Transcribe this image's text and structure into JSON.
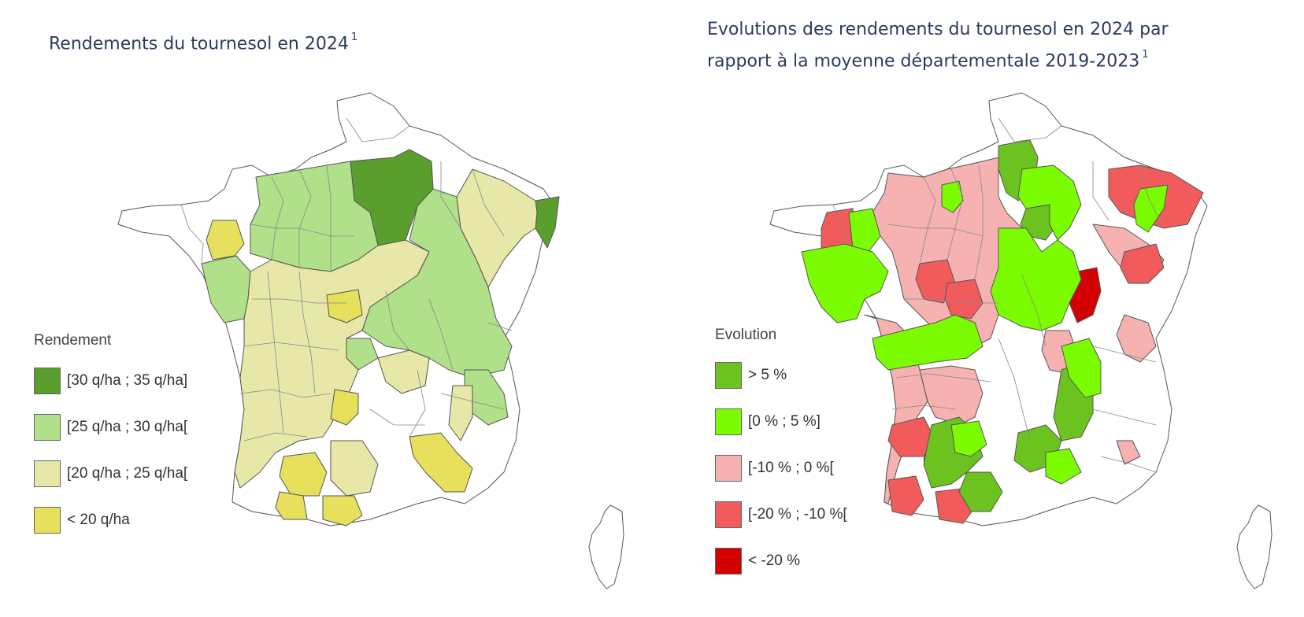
{
  "left_map": {
    "title": "Rendements du tournesol en 2024",
    "title_note": "1",
    "legend": {
      "title": "Rendement",
      "items": [
        {
          "label": "[30 q/ha ; 35 q/ha]",
          "color": "#5a9e2e"
        },
        {
          "label": "[25 q/ha ; 30 q/ha[",
          "color": "#b0e08a"
        },
        {
          "label": "[20 q/ha ; 25 q/ha[",
          "color": "#e7e8a8"
        },
        {
          "label": "< 20 q/ha",
          "color": "#e6e05c"
        }
      ],
      "no_data_color": "#ffffff"
    }
  },
  "right_map": {
    "title_line1": "Evolutions des rendements du tournesol en 2024 par",
    "title_line2": "rapport à la moyenne départementale 2019-2023",
    "title_note": "1",
    "legend": {
      "title": "Evolution",
      "items": [
        {
          "label": "> 5 %",
          "color": "#6cc21f"
        },
        {
          "label": "[0 % ; 5 %]",
          "color": "#7cfc00"
        },
        {
          "label": "[-10 % ; 0 %[",
          "color": "#f6b1b1"
        },
        {
          "label": "[-20 % ; -10 %[",
          "color": "#f25b5b"
        },
        {
          "label": "< -20 %",
          "color": "#d40000"
        }
      ],
      "no_data_color": "#ffffff"
    }
  }
}
